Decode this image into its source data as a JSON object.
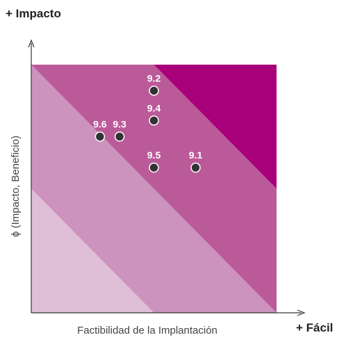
{
  "chart_data": {
    "type": "scatter",
    "y_corner_label": "+ Impacto",
    "x_corner_label": "+ Fácil",
    "xlabel": "Factibilidad de la Implantación",
    "ylabel": "ϕ (Impacto, Beneficio)",
    "xlim": [
      0,
      10
    ],
    "ylim": [
      0,
      10
    ],
    "grid": false,
    "zones": [
      {
        "level": 1,
        "color": "#dfbfd8"
      },
      {
        "level": 2,
        "color": "#cb93bd"
      },
      {
        "level": 3,
        "color": "#bb5a99"
      },
      {
        "level": 4,
        "color": "#a8007a"
      }
    ],
    "zone_boundaries": [
      5,
      10,
      15
    ],
    "points": [
      {
        "label": "9.2",
        "x": 5.0,
        "y": 8.95
      },
      {
        "label": "9.4",
        "x": 5.0,
        "y": 7.75
      },
      {
        "label": "9.6",
        "x": 2.8,
        "y": 7.1
      },
      {
        "label": "9.3",
        "x": 3.6,
        "y": 7.1
      },
      {
        "label": "9.5",
        "x": 5.0,
        "y": 5.85
      },
      {
        "label": "9.1",
        "x": 6.7,
        "y": 5.85
      }
    ],
    "point_color": "#333333"
  }
}
